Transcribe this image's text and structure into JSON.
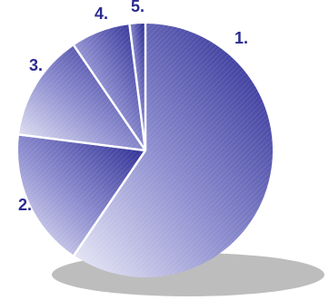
{
  "colors": {
    "label": "#2B2B8F",
    "slice_light": "#ECECF8",
    "slice_dark": "#25258F",
    "separator": "#ffffff",
    "shadow": "#BDBDBD"
  },
  "chart_data": {
    "type": "pie",
    "title": "",
    "legend": "none",
    "slices": [
      {
        "label": "1.",
        "value": 59.5
      },
      {
        "label": "2.",
        "value": 17.5
      },
      {
        "label": "3.",
        "value": 13.5
      },
      {
        "label": "4.",
        "value": 7.5
      },
      {
        "label": "5.",
        "value": 2.0
      }
    ]
  }
}
